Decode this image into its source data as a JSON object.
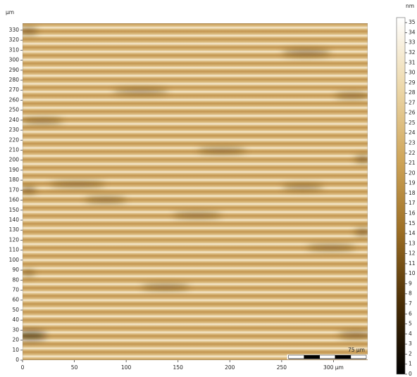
{
  "chart_data": {
    "type": "image",
    "y_unit": "μm",
    "xlim": [
      0,
      333
    ],
    "ylim": [
      0,
      337
    ],
    "xticks": [
      0,
      50,
      100,
      150,
      200,
      250,
      {
        "value": 300,
        "label": "300 μm"
      }
    ],
    "yticks": [
      0,
      10,
      20,
      30,
      40,
      50,
      60,
      70,
      80,
      90,
      100,
      110,
      120,
      130,
      140,
      150,
      160,
      170,
      180,
      190,
      200,
      210,
      220,
      230,
      240,
      250,
      260,
      270,
      280,
      290,
      300,
      310,
      320,
      330
    ],
    "colorbar": {
      "unit": "nm",
      "lim": [
        0,
        35.5
      ],
      "ticks": [
        0,
        1,
        2,
        3,
        4,
        5,
        6,
        7,
        8,
        9,
        10,
        11,
        12,
        13,
        14,
        15,
        16,
        17,
        18,
        19,
        20,
        21,
        22,
        23,
        24,
        25,
        26,
        27,
        28,
        29,
        30,
        31,
        32,
        33,
        34,
        35
      ],
      "colormap": [
        "#000000",
        "#4a2e06",
        "#9c6e24",
        "#cfa559",
        "#ecd7a8",
        "#ffffff"
      ]
    },
    "scale_bar": {
      "length": 75,
      "label": "75 μm"
    }
  }
}
